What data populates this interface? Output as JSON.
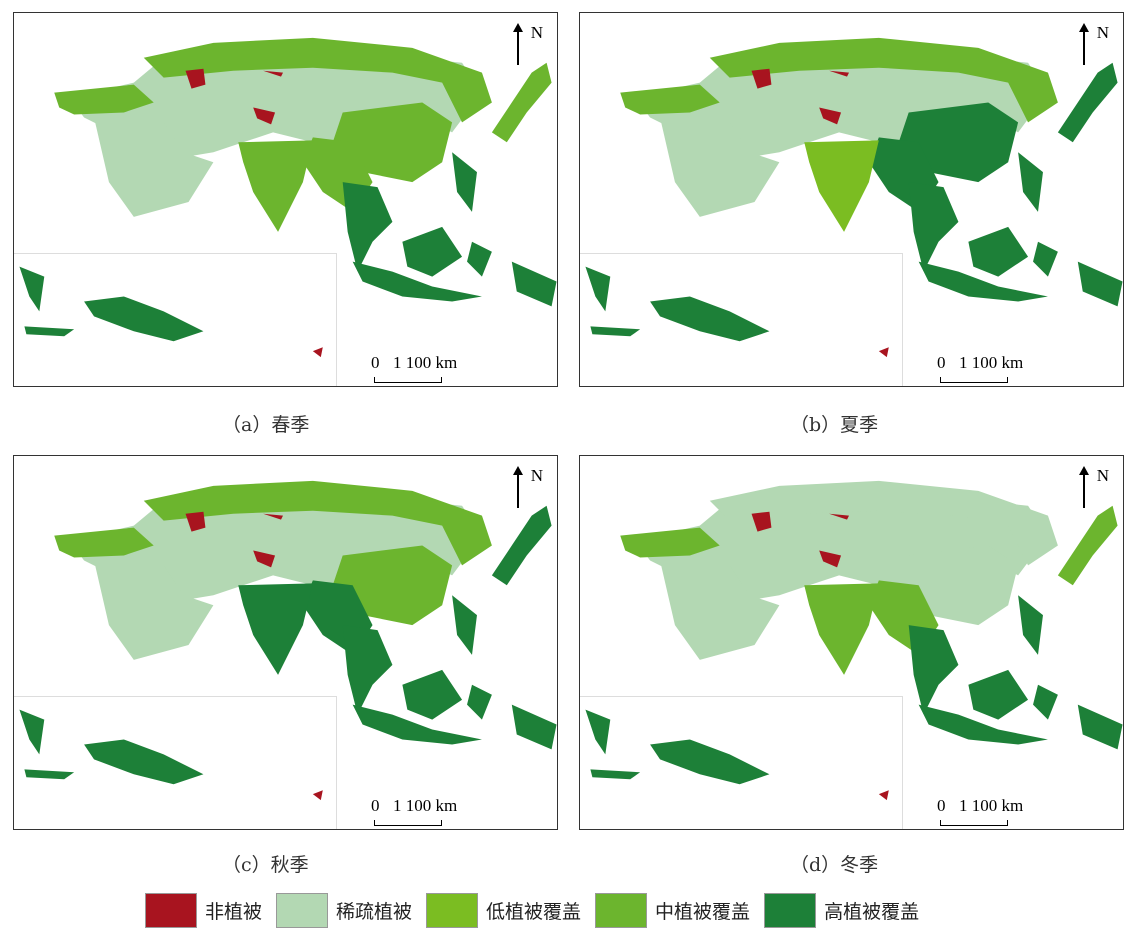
{
  "legend": [
    {
      "key": "none",
      "label": "非植被",
      "color": "#a8141f"
    },
    {
      "key": "sparse",
      "label": "稀疏植被",
      "color": "#b3d8b3"
    },
    {
      "key": "low",
      "label": "低植被覆盖",
      "color": "#7bbd22"
    },
    {
      "key": "mid",
      "label": "中植被覆盖",
      "color": "#6cb52e"
    },
    {
      "key": "high",
      "label": "高植被覆盖",
      "color": "#1d8038"
    }
  ],
  "north_label": "N",
  "scale": {
    "zero": "0",
    "value": "1 100 km"
  },
  "panels": [
    {
      "caption": "（a）春季",
      "regions": {
        "north": "mid",
        "south": "mid",
        "india": "mid",
        "china": "mid",
        "seasia": "high",
        "japan": "mid",
        "islands": "high",
        "west": "mid"
      }
    },
    {
      "caption": "（b）夏季",
      "regions": {
        "north": "mid",
        "south": "high",
        "india": "low",
        "china": "high",
        "seasia": "high",
        "japan": "high",
        "islands": "high",
        "west": "mid"
      }
    },
    {
      "caption": "（c）秋季",
      "regions": {
        "north": "mid",
        "south": "high",
        "india": "high",
        "china": "mid",
        "seasia": "high",
        "japan": "high",
        "islands": "high",
        "west": "mid"
      }
    },
    {
      "caption": "（d）冬季",
      "regions": {
        "north": "sparse",
        "south": "mid",
        "india": "mid",
        "china": "sparse",
        "seasia": "high",
        "japan": "mid",
        "islands": "high",
        "west": "mid"
      }
    }
  ]
}
